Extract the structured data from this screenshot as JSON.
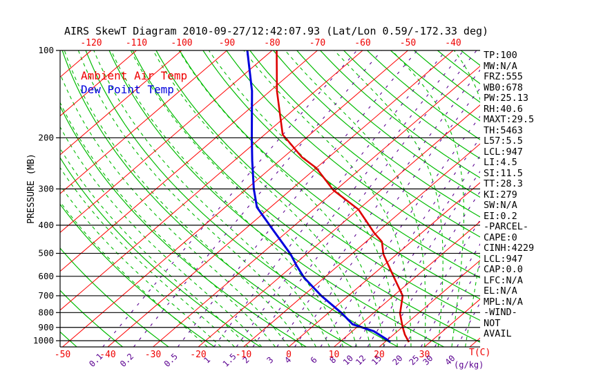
{
  "title": "AIRS SkewT Diagram 2010-09-27/12:42:07.93 (Lat/Lon 0.59/-172.33 deg)",
  "legend": {
    "temp": "Ambient Air Temp",
    "dew": "Dew Point Temp"
  },
  "axes": {
    "pressure_label": "PRESSURE (MB)",
    "pressure_ticks": [
      100,
      200,
      300,
      400,
      500,
      600,
      700,
      800,
      900,
      1000
    ],
    "temp_unit_label": "T(C)",
    "mixing_unit_label": "(g/kg)",
    "top_temp_labels": [
      -120,
      -110,
      -100,
      -90,
      -80,
      -70,
      -60,
      -50,
      -40
    ],
    "bottom_temp_labels": [
      -50,
      -40,
      -30,
      -20,
      -10,
      0,
      10,
      20,
      30
    ],
    "mixing_ratio_labels": [
      "0.1",
      "0.2",
      "0.5",
      "1",
      "1.5",
      "2",
      "3",
      "4",
      "6",
      "8",
      "10",
      "12",
      "15",
      "20",
      "25",
      "30",
      "40"
    ]
  },
  "stats": [
    "TP:100",
    "MW:N/A",
    "FRZ:555",
    "WB0:678",
    "PW:25.13",
    "RH:40.6",
    "MAXT:29.5",
    "TH:5463",
    "L57:5.5",
    "LCL:947",
    "LI:4.5",
    "SI:11.5",
    "TT:28.3",
    "KI:279",
    "SW:N/A",
    "EI:0.2",
    "-PARCEL-",
    "CAPE:0",
    "CINH:4229",
    "LCL:947",
    "CAP:0.0",
    "LFC:N/A",
    "EL:N/A",
    "MPL:N/A",
    "-WIND-",
    "NOT",
    "AVAIL"
  ],
  "colors": {
    "isotherm": "#ff0000",
    "labels_red": "#ee0000",
    "adiabat": "#00bb00",
    "moist_adiabat": "#00bb00",
    "mixing": "#5a0090",
    "grid": "#000000",
    "temp_profile": "#dd0000",
    "dew_profile": "#0000dd",
    "text": "#000000"
  },
  "chart_data": {
    "type": "line",
    "title": "AIRS SkewT Diagram 2010-09-27/12:42:07.93 (Lat/Lon 0.59/-172.33 deg)",
    "xlabel": "T(C)",
    "ylabel": "PRESSURE (MB)",
    "y_axis": {
      "scale": "log",
      "range_mb": [
        100,
        1050
      ],
      "ticks": [
        100,
        200,
        300,
        400,
        500,
        600,
        700,
        800,
        900,
        1000
      ]
    },
    "x_axis": {
      "skewed": true,
      "top_ticks_c": [
        -120,
        -110,
        -100,
        -90,
        -80,
        -70,
        -60,
        -50,
        -40
      ],
      "bottom_ticks_c": [
        -50,
        -40,
        -30,
        -20,
        -10,
        0,
        10,
        20,
        30
      ]
    },
    "series": [
      {
        "name": "Ambient Air Temp",
        "points_p_t": [
          [
            100,
            -79
          ],
          [
            138,
            -68.5
          ],
          [
            195,
            -56
          ],
          [
            202,
            -54
          ],
          [
            233,
            -46
          ],
          [
            254,
            -40
          ],
          [
            303,
            -30.5
          ],
          [
            353,
            -20
          ],
          [
            425,
            -10.5
          ],
          [
            456,
            -6.5
          ],
          [
            503,
            -3
          ],
          [
            607,
            5.5
          ],
          [
            700,
            12
          ],
          [
            806,
            16
          ],
          [
            896,
            20
          ],
          [
            953,
            22.5
          ],
          [
            1011,
            25.3
          ]
        ]
      },
      {
        "name": "Dew Point Temp",
        "points_p_t": [
          [
            100,
            -85.5
          ],
          [
            138,
            -74
          ],
          [
            200,
            -62
          ],
          [
            240,
            -56
          ],
          [
            300,
            -48.4
          ],
          [
            347,
            -43
          ],
          [
            409,
            -34.4
          ],
          [
            503,
            -23.5
          ],
          [
            550,
            -19.3
          ],
          [
            607,
            -14.4
          ],
          [
            700,
            -6
          ],
          [
            806,
            3.2
          ],
          [
            878,
            8.3
          ],
          [
            927,
            14.7
          ],
          [
            988,
            19.6
          ],
          [
            1011,
            21.2
          ]
        ]
      }
    ],
    "isotherms_c": {
      "min": -130,
      "max": 40,
      "step": 10
    },
    "dry_adiabats_theta_c": {
      "min": -50,
      "max": 190,
      "step": 10
    },
    "moist_adiabats_start_c": {
      "min": -18,
      "max": 39,
      "step": 3
    },
    "mixing_ratio_gkg": [
      0.1,
      0.2,
      0.5,
      1,
      1.5,
      2,
      3,
      4,
      6,
      8,
      10,
      12,
      15,
      20,
      25,
      30,
      40
    ],
    "grid": true,
    "legend_position": "top-left-inside"
  }
}
